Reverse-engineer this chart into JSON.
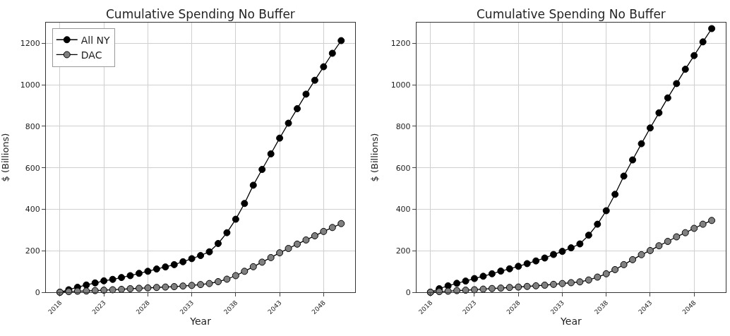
{
  "chart_data": [
    {
      "type": "line",
      "title": "Cumulative Spending No Buffer",
      "xlabel": "Year",
      "ylabel": "$ (Billions)",
      "x": [
        2018,
        2019,
        2020,
        2021,
        2022,
        2023,
        2024,
        2025,
        2026,
        2027,
        2028,
        2029,
        2030,
        2031,
        2032,
        2033,
        2034,
        2035,
        2036,
        2037,
        2038,
        2039,
        2040,
        2041,
        2042,
        2043,
        2044,
        2045,
        2046,
        2047,
        2048,
        2049,
        2050
      ],
      "series": [
        {
          "name": "All NY",
          "color": "#000000",
          "values": [
            0,
            12,
            24,
            35,
            45,
            55,
            62,
            71,
            80,
            91,
            101,
            112,
            122,
            133,
            147,
            162,
            177,
            195,
            235,
            287,
            352,
            428,
            516,
            592,
            667,
            743,
            815,
            885,
            955,
            1022,
            1087,
            1152,
            1213
          ]
        },
        {
          "name": "DAC",
          "color": "#808080",
          "values": [
            0,
            3,
            5,
            6,
            8,
            10,
            12,
            14,
            17,
            19,
            21,
            23,
            25,
            27,
            30,
            33,
            37,
            42,
            51,
            63,
            80,
            101,
            123,
            145,
            167,
            190,
            211,
            232,
            252,
            272,
            293,
            312,
            331
          ]
        }
      ],
      "xlim": [
        2016.4,
        2051.6
      ],
      "xticks": [
        2018,
        2023,
        2028,
        2033,
        2038,
        2043,
        2048
      ],
      "ylim": [
        0,
        1300
      ],
      "yticks": [
        0,
        200,
        400,
        600,
        800,
        1000,
        1200
      ],
      "grid": true,
      "legend": "top left",
      "marker": "circle",
      "line_style": "solid"
    },
    {
      "type": "line",
      "title": "Cumulative Spending No Buffer",
      "xlabel": "Year",
      "ylabel": "$ (Billions)",
      "x": [
        2018,
        2019,
        2020,
        2021,
        2022,
        2023,
        2024,
        2025,
        2026,
        2027,
        2028,
        2029,
        2030,
        2031,
        2032,
        2033,
        2034,
        2035,
        2036,
        2037,
        2038,
        2039,
        2040,
        2041,
        2042,
        2043,
        2044,
        2045,
        2046,
        2047,
        2048,
        2049,
        2050
      ],
      "series": [
        {
          "color": "#000000",
          "values": [
            0,
            17,
            31,
            43,
            54,
            66,
            77,
            89,
            102,
            113,
            125,
            138,
            151,
            165,
            182,
            197,
            214,
            233,
            275,
            328,
            393,
            472,
            560,
            638,
            716,
            792,
            865,
            937,
            1006,
            1075,
            1141,
            1207,
            1271
          ]
        },
        {
          "color": "#808080",
          "values": [
            0,
            3,
            5,
            8,
            10,
            12,
            15,
            18,
            20,
            23,
            25,
            28,
            31,
            34,
            38,
            42,
            46,
            50,
            59,
            73,
            89,
            109,
            133,
            157,
            181,
            201,
            224,
            245,
            267,
            287,
            308,
            328,
            346
          ]
        }
      ],
      "xlim": [
        2016.4,
        2051.6
      ],
      "xticks": [
        2018,
        2023,
        2028,
        2033,
        2038,
        2043,
        2048
      ],
      "ylim": [
        0,
        1300
      ],
      "yticks": [
        0,
        200,
        400,
        600,
        800,
        1000,
        1200
      ],
      "grid": true,
      "marker": "circle",
      "line_style": "solid"
    }
  ]
}
